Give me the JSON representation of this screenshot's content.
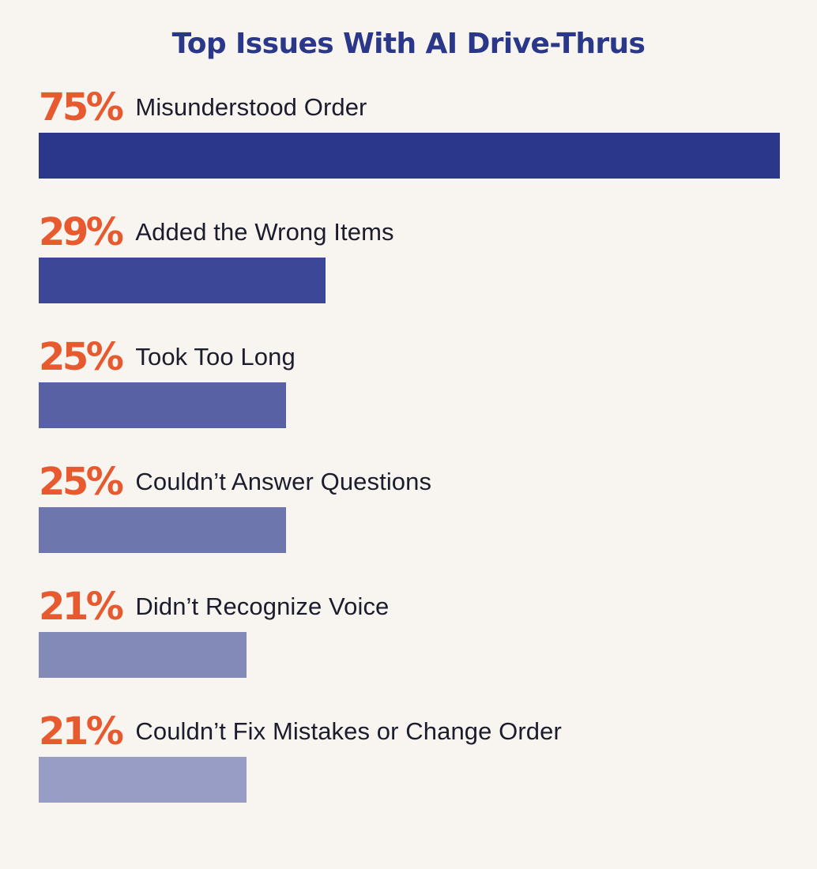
{
  "chart_data": {
    "type": "bar",
    "orientation": "horizontal",
    "title": "Top Issues With AI Drive-Thrus",
    "categories": [
      "Misunderstood Order",
      "Added the Wrong Items",
      "Took Too Long",
      "Couldn’t Answer Questions",
      "Didn’t Recognize Voice",
      "Couldn’t Fix Mistakes or Change Order"
    ],
    "values": [
      75,
      29,
      25,
      25,
      21,
      21
    ],
    "value_labels": [
      "75%",
      "29%",
      "25%",
      "25%",
      "21%",
      "21%"
    ],
    "xlim": [
      0,
      75
    ],
    "grid": false,
    "legend": "none",
    "bar_colors": [
      "#2b378a",
      "#3d4797",
      "#5861a3",
      "#6e77ad",
      "#838ab8",
      "#979dc4"
    ],
    "value_color": "#e75a30",
    "title_color": "#2b3789"
  }
}
